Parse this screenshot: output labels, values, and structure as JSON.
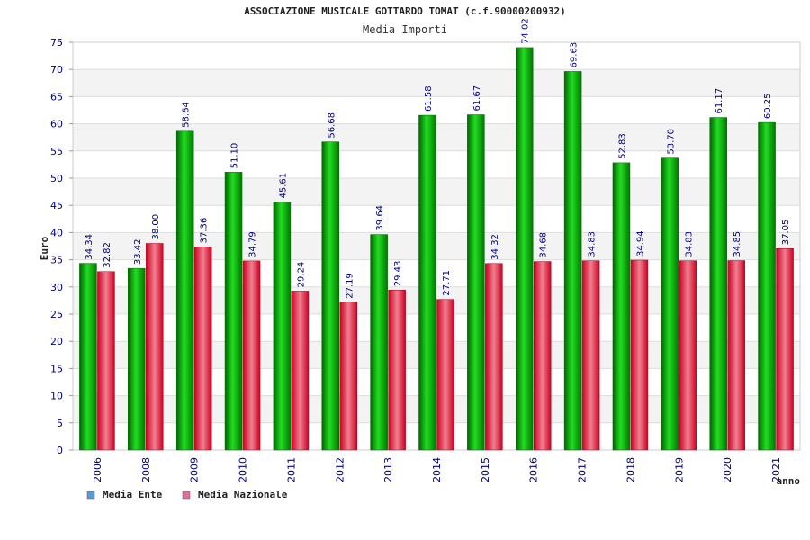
{
  "chart_data": {
    "type": "bar",
    "title": "ASSOCIAZIONE MUSICALE GOTTARDO TOMAT (c.f.90000200932)",
    "subtitle": "Media Importi",
    "xlabel": "anno",
    "ylabel": "Euro",
    "ylim": [
      0,
      75
    ],
    "yticks": [
      0,
      5,
      10,
      15,
      20,
      25,
      30,
      35,
      40,
      45,
      50,
      55,
      60,
      65,
      70,
      75
    ],
    "grid": "horizontal bands",
    "legend_position": "bottom-left",
    "categories": [
      "2006",
      "2008",
      "2009",
      "2010",
      "2011",
      "2012",
      "2013",
      "2014",
      "2015",
      "2016",
      "2017",
      "2018",
      "2019",
      "2020",
      "2021"
    ],
    "series": [
      {
        "name": "Media Ente",
        "color": "#00bb00",
        "legend_color": "#5b9bd5",
        "values": [
          34.34,
          33.42,
          58.64,
          51.1,
          45.61,
          56.68,
          39.64,
          61.58,
          61.67,
          74.02,
          69.63,
          52.83,
          53.7,
          61.17,
          60.25
        ],
        "labels": [
          "34.34",
          "33.42",
          "58.64",
          "51.10",
          "45.61",
          "56.68",
          "39.64",
          "61.58",
          "61.67",
          "74.02",
          "69.63",
          "52.83",
          "53.70",
          "61.17",
          "60.25"
        ]
      },
      {
        "name": "Media Nazionale",
        "color": "#e8203c",
        "legend_color": "#e06fa0",
        "values": [
          32.82,
          38.0,
          37.36,
          34.79,
          29.24,
          27.19,
          29.43,
          27.71,
          34.32,
          34.68,
          34.83,
          34.94,
          34.83,
          34.85,
          37.05
        ],
        "labels": [
          "32.82",
          "38.00",
          "37.36",
          "34.79",
          "29.24",
          "27.19",
          "29.43",
          "27.71",
          "34.32",
          "34.68",
          "34.83",
          "34.94",
          "34.83",
          "34.85",
          "37.05"
        ]
      }
    ]
  }
}
